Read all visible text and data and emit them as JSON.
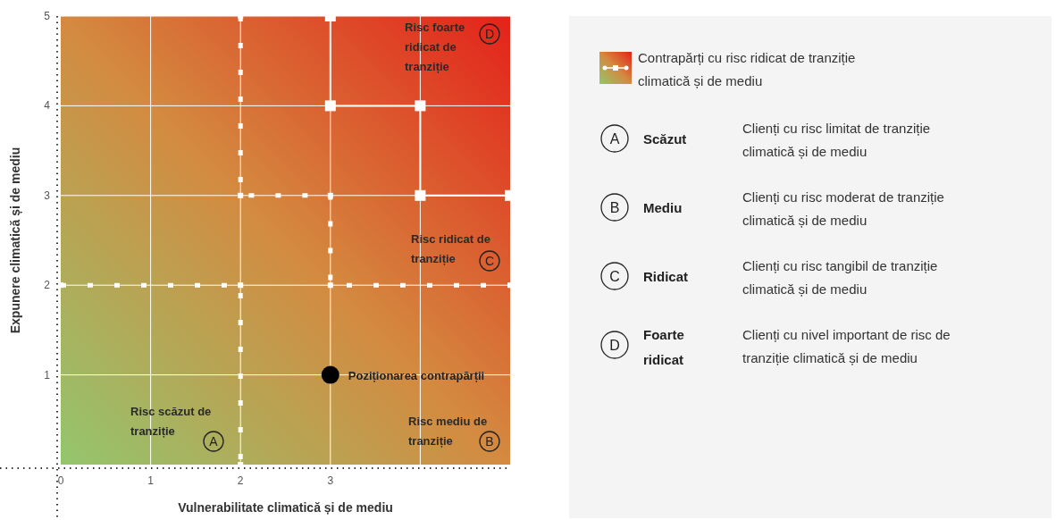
{
  "chart_data": {
    "type": "scatter",
    "xlabel": "Vulnerabilitate climatică și de mediu",
    "ylabel": "Expunere climatică și de mediu",
    "xlim": [
      0,
      5
    ],
    "ylim": [
      0,
      5
    ],
    "xticks": [
      0,
      1,
      2,
      3,
      {
        "value": 4,
        "label": null
      }
    ],
    "yticks": [
      1,
      2,
      3,
      4,
      5
    ],
    "grid": true,
    "legend": "right",
    "series": [
      {
        "name": "Contrapărți cu risc ridicat de tranziție climatică și de mediu",
        "type": "line",
        "color": "#ffffff",
        "line_style": "solid",
        "marker": "square",
        "x": [
          3,
          3,
          4,
          4,
          5
        ],
        "values": [
          5,
          4,
          4,
          3,
          3
        ]
      },
      {
        "type": "line",
        "color": "#ffffff",
        "line_style": "dotted",
        "marker": "square",
        "x": [
          2,
          2,
          3,
          3,
          5
        ],
        "values": [
          5,
          3,
          3,
          2,
          2
        ]
      },
      {
        "type": "line",
        "color": "#ffffff",
        "line_style": "dotted",
        "marker": "square",
        "x": [
          0,
          2,
          2
        ],
        "values": [
          2,
          2,
          0
        ]
      },
      {
        "name": "Poziționarea contrapărții",
        "color": "#000000",
        "marker": "circle",
        "x": [
          3
        ],
        "values": [
          1
        ]
      }
    ],
    "annotations": [
      "Risc scăzut de tranziție",
      "A",
      "Risc mediu de tranziție",
      "B",
      "Risc ridicat de tranziție",
      "C",
      "Risc foarte ridicat de tranziție",
      "D",
      "A",
      "Scăzut",
      "Clienți cu risc limitat de tranziție climatică și de mediu",
      "B",
      "Mediu",
      "Clienți cu risc moderat de tranziție climatică și de mediu",
      "C",
      "Ridicat",
      "Clienți cu risc tangibil de tranziție climatică și de mediu",
      "D",
      "Foarte ridicat",
      "Clienți cu nivel important de risc de tranziție climatică și de mediu"
    ]
  }
}
